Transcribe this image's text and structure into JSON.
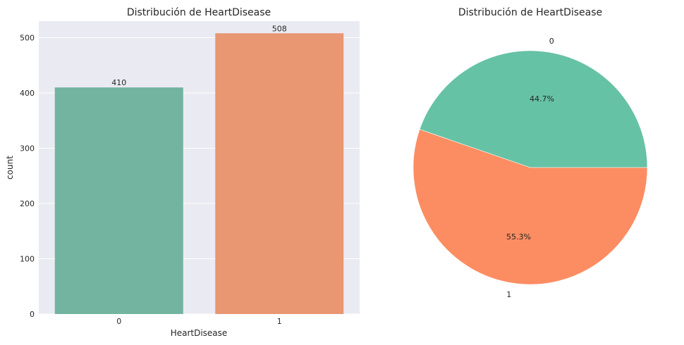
{
  "chart_data": [
    {
      "type": "bar",
      "title": "Distribución de HeartDisease",
      "xlabel": "HeartDisease",
      "ylabel": "count",
      "categories": [
        "0",
        "1"
      ],
      "values": [
        410,
        508
      ],
      "data_labels": [
        "410",
        "508"
      ],
      "colors": [
        "#72b4a0",
        "#e99673"
      ],
      "ylim": [
        0,
        530
      ],
      "yticks": [
        0,
        100,
        200,
        300,
        400,
        500
      ],
      "grid": true,
      "background": "#eaeaf2"
    },
    {
      "type": "pie",
      "title": "Distribución de HeartDisease",
      "labels": [
        "0",
        "1"
      ],
      "values": [
        44.7,
        55.3
      ],
      "pct_labels": [
        "44.7%",
        "55.3%"
      ],
      "colors": [
        "#66c2a5",
        "#fc8d62"
      ],
      "start_angle": 0
    }
  ]
}
